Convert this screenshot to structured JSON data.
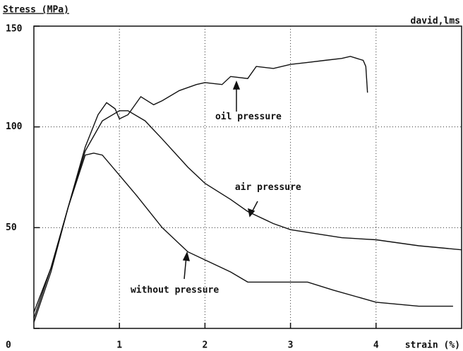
{
  "chart_data": {
    "type": "line",
    "y_label": "Stress (MPa)",
    "x_label": "strain (%)",
    "credit": "david,lms",
    "xlim": [
      0,
      5
    ],
    "ylim": [
      0,
      150
    ],
    "xticks": [
      1,
      2,
      3,
      4
    ],
    "yticks": [
      0,
      50,
      100,
      150
    ],
    "grid": true,
    "series": [
      {
        "name": "oil pressure",
        "color": "#111111",
        "x": [
          0,
          0.2,
          0.4,
          0.6,
          0.75,
          0.85,
          0.95,
          1.0,
          1.1,
          1.25,
          1.4,
          1.5,
          1.7,
          1.9,
          2.0,
          2.2,
          2.3,
          2.5,
          2.6,
          2.8,
          3.0,
          3.2,
          3.4,
          3.6,
          3.7,
          3.85,
          3.88,
          3.9
        ],
        "values": [
          5,
          30,
          60,
          90,
          106,
          112,
          109,
          104,
          106,
          115,
          111,
          113,
          118,
          121,
          122,
          121,
          125,
          124,
          130,
          129,
          131,
          132,
          133,
          134,
          135,
          133,
          130,
          117
        ]
      },
      {
        "name": "air pressure",
        "color": "#111111",
        "x": [
          0,
          0.2,
          0.4,
          0.6,
          0.8,
          1.0,
          1.1,
          1.3,
          1.5,
          1.8,
          2.0,
          2.3,
          2.5,
          2.8,
          3.0,
          3.3,
          3.6,
          4.0,
          4.5,
          5.0
        ],
        "values": [
          3,
          28,
          60,
          88,
          103,
          108,
          108,
          103,
          94,
          80,
          72,
          64,
          58,
          52,
          49,
          47,
          45,
          44,
          41,
          39
        ]
      },
      {
        "name": "without pressure",
        "color": "#111111",
        "x": [
          0,
          0.2,
          0.4,
          0.6,
          0.7,
          0.8,
          1.0,
          1.2,
          1.5,
          1.8,
          2.0,
          2.3,
          2.5,
          2.8,
          3.0,
          3.2,
          3.5,
          4.0,
          4.5,
          4.9
        ],
        "values": [
          8,
          30,
          60,
          86,
          87,
          86,
          76,
          66,
          50,
          38,
          34,
          28,
          23,
          23,
          23,
          23,
          19,
          13,
          11,
          11
        ]
      }
    ],
    "annotations": [
      {
        "text": "oil pressure",
        "x": 2.12,
        "y": 105
      },
      {
        "text": "air pressure",
        "x": 2.35,
        "y": 70
      },
      {
        "text": "without pressure",
        "x": 1.13,
        "y": 19
      }
    ]
  }
}
